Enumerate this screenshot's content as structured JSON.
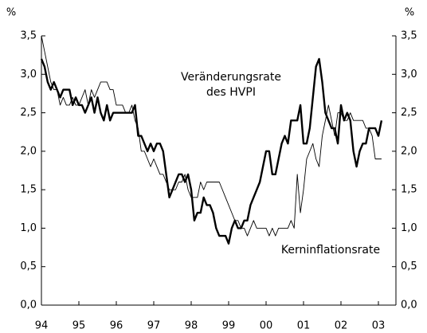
{
  "chart_data": {
    "type": "line",
    "y_unit": "%",
    "y2_unit": "%",
    "categories": [
      "94",
      null,
      null,
      null,
      null,
      null,
      null,
      null,
      null,
      null,
      null,
      null,
      "95",
      null,
      null,
      null,
      null,
      null,
      null,
      null,
      null,
      null,
      null,
      null,
      "96",
      null,
      null,
      null,
      null,
      null,
      null,
      null,
      null,
      null,
      null,
      null,
      "97",
      null,
      null,
      null,
      null,
      null,
      null,
      null,
      null,
      null,
      null,
      null,
      "98",
      null,
      null,
      null,
      null,
      null,
      null,
      null,
      null,
      null,
      null,
      null,
      "99",
      null,
      null,
      null,
      null,
      null,
      null,
      null,
      null,
      null,
      null,
      null,
      "00",
      null,
      null,
      null,
      null,
      null,
      null,
      null,
      null,
      null,
      null,
      null,
      "01",
      null,
      null,
      null,
      null,
      null,
      null,
      null,
      null,
      null,
      null,
      null,
      "02",
      null,
      null,
      null,
      null,
      null,
      null,
      null,
      null,
      null,
      null,
      null,
      "03",
      null
    ],
    "series": [
      {
        "name": "Veränderungsrate des HVPI",
        "color": "#000000",
        "width": 2.4,
        "values": [
          3.2,
          3.1,
          2.9,
          2.8,
          2.9,
          2.8,
          2.7,
          2.8,
          2.8,
          2.8,
          2.6,
          2.7,
          2.6,
          2.6,
          2.5,
          2.6,
          2.7,
          2.5,
          2.7,
          2.5,
          2.4,
          2.6,
          2.4,
          2.5,
          2.5,
          2.5,
          2.5,
          2.5,
          2.5,
          2.5,
          2.6,
          2.2,
          2.2,
          2.1,
          2.0,
          2.1,
          2.0,
          2.1,
          2.1,
          2.0,
          1.7,
          1.4,
          1.5,
          1.6,
          1.7,
          1.7,
          1.6,
          1.7,
          1.5,
          1.1,
          1.2,
          1.2,
          1.4,
          1.3,
          1.3,
          1.2,
          1.0,
          0.9,
          0.9,
          0.9,
          0.8,
          1.0,
          1.1,
          1.0,
          1.0,
          1.1,
          1.1,
          1.3,
          1.4,
          1.5,
          1.6,
          1.8,
          2.0,
          2.0,
          1.7,
          1.7,
          1.9,
          2.1,
          2.2,
          2.1,
          2.4,
          2.4,
          2.4,
          2.6,
          2.1,
          2.1,
          2.3,
          2.7,
          3.1,
          3.2,
          2.9,
          2.5,
          2.4,
          2.3,
          2.3,
          2.1,
          2.6,
          2.4,
          2.5,
          2.4,
          2.0,
          1.8,
          2.0,
          2.1,
          2.1,
          2.3,
          2.3,
          2.3,
          2.2,
          2.4
        ]
      },
      {
        "name": "Kerninflationsrate",
        "color": "#000000",
        "width": 0.9,
        "values": [
          3.5,
          3.3,
          3.1,
          2.9,
          2.8,
          2.8,
          2.6,
          2.7,
          2.6,
          2.6,
          2.7,
          2.6,
          2.6,
          2.7,
          2.8,
          2.6,
          2.8,
          2.7,
          2.8,
          2.9,
          2.9,
          2.9,
          2.8,
          2.8,
          2.6,
          2.6,
          2.6,
          2.5,
          2.5,
          2.6,
          2.4,
          2.3,
          2.0,
          2.0,
          1.9,
          1.8,
          1.9,
          1.8,
          1.7,
          1.7,
          1.6,
          1.5,
          1.5,
          1.5,
          1.6,
          1.6,
          1.7,
          1.5,
          1.4,
          1.4,
          1.4,
          1.6,
          1.5,
          1.6,
          1.6,
          1.6,
          1.6,
          1.6,
          1.5,
          1.4,
          1.3,
          1.2,
          1.1,
          1.1,
          1.0,
          1.0,
          0.9,
          1.0,
          1.1,
          1.0,
          1.0,
          1.0,
          1.0,
          0.9,
          1.0,
          0.9,
          1.0,
          1.0,
          1.0,
          1.0,
          1.1,
          1.0,
          1.7,
          1.2,
          1.5,
          1.9,
          2.0,
          2.1,
          1.9,
          1.8,
          2.2,
          2.4,
          2.6,
          2.4,
          2.2,
          2.5,
          2.5,
          2.4,
          2.4,
          2.5,
          2.4,
          2.4,
          2.4,
          2.4,
          2.3,
          2.3,
          2.2,
          1.9,
          1.9,
          1.9
        ]
      }
    ],
    "ylim": [
      0,
      3.5
    ],
    "yticks": [
      {
        "value": 0,
        "label": "0,0"
      },
      {
        "value": 0.5,
        "label": "0,5"
      },
      {
        "value": 1,
        "label": "1,0"
      },
      {
        "value": 1.5,
        "label": "1,5"
      },
      {
        "value": 2,
        "label": "2,0"
      },
      {
        "value": 2.5,
        "label": "2,5"
      },
      {
        "value": 3,
        "label": "3,0"
      },
      {
        "value": 3.5,
        "label": "3,5"
      }
    ],
    "y2lim": [
      0,
      3.5
    ],
    "y2ticks": [
      {
        "value": 0,
        "label": "0,0"
      },
      {
        "value": 0.5,
        "label": "0,5"
      },
      {
        "value": 1,
        "label": "1,0"
      },
      {
        "value": 1.5,
        "label": "1,5"
      },
      {
        "value": 2,
        "label": "2,0"
      },
      {
        "value": 2.5,
        "label": "2,5"
      },
      {
        "value": 3,
        "label": "3,0"
      },
      {
        "value": 3.5,
        "label": "3,5"
      }
    ],
    "grid": false
  }
}
